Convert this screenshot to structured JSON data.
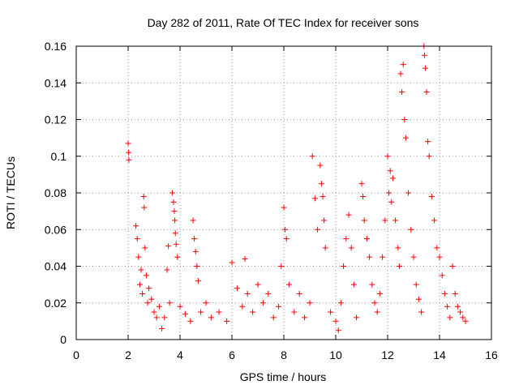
{
  "chart_data": {
    "type": "scatter",
    "title": "Day 282 of 2011, Rate Of TEC Index for receiver sons",
    "xlabel": "GPS time / hours",
    "ylabel": "ROTI / TECUs",
    "xlim": [
      0,
      16
    ],
    "ylim": [
      0,
      0.16
    ],
    "grid": true,
    "marker": "+",
    "series": [
      {
        "name": "ROTI",
        "color": "#ff0000",
        "x": [
          2.0,
          2.02,
          2.03,
          2.3,
          2.35,
          2.4,
          2.45,
          2.5,
          2.55,
          2.6,
          2.62,
          2.65,
          2.7,
          2.75,
          2.8,
          2.9,
          3.0,
          3.1,
          3.2,
          3.3,
          3.4,
          3.5,
          3.55,
          3.6,
          3.7,
          3.75,
          3.78,
          3.8,
          3.82,
          3.85,
          3.9,
          4.0,
          4.2,
          4.4,
          4.5,
          4.55,
          4.6,
          4.65,
          4.7,
          4.8,
          5.0,
          5.2,
          5.5,
          5.8,
          6.0,
          6.2,
          6.4,
          6.5,
          6.6,
          6.8,
          7.0,
          7.2,
          7.4,
          7.6,
          7.8,
          7.9,
          8.0,
          8.05,
          8.1,
          8.2,
          8.4,
          8.6,
          8.8,
          9.0,
          9.1,
          9.2,
          9.3,
          9.4,
          9.45,
          9.5,
          9.55,
          9.6,
          9.8,
          10.0,
          10.1,
          10.2,
          10.3,
          10.4,
          10.5,
          10.6,
          10.7,
          10.8,
          11.0,
          11.05,
          11.1,
          11.2,
          11.3,
          11.4,
          11.5,
          11.6,
          11.7,
          11.8,
          11.9,
          12.0,
          12.05,
          12.1,
          12.15,
          12.2,
          12.3,
          12.4,
          12.45,
          12.5,
          12.55,
          12.6,
          12.65,
          12.7,
          12.8,
          12.9,
          13.0,
          13.1,
          13.2,
          13.3,
          13.4,
          13.42,
          13.45,
          13.5,
          13.55,
          13.6,
          13.7,
          13.8,
          13.9,
          14.0,
          14.1,
          14.2,
          14.3,
          14.4,
          14.5,
          14.6,
          14.7,
          14.8,
          14.9,
          15.0
        ],
        "y": [
          0.107,
          0.102,
          0.098,
          0.062,
          0.055,
          0.045,
          0.03,
          0.038,
          0.025,
          0.078,
          0.072,
          0.05,
          0.035,
          0.02,
          0.028,
          0.022,
          0.015,
          0.012,
          0.018,
          0.006,
          0.012,
          0.038,
          0.051,
          0.02,
          0.08,
          0.075,
          0.07,
          0.065,
          0.058,
          0.052,
          0.045,
          0.018,
          0.014,
          0.01,
          0.065,
          0.055,
          0.048,
          0.04,
          0.032,
          0.015,
          0.02,
          0.012,
          0.015,
          0.01,
          0.042,
          0.028,
          0.018,
          0.044,
          0.025,
          0.015,
          0.03,
          0.02,
          0.025,
          0.012,
          0.018,
          0.04,
          0.072,
          0.06,
          0.055,
          0.03,
          0.015,
          0.025,
          0.012,
          0.02,
          0.1,
          0.077,
          0.06,
          0.095,
          0.085,
          0.078,
          0.065,
          0.05,
          0.015,
          0.01,
          0.005,
          0.02,
          0.04,
          0.055,
          0.068,
          0.05,
          0.03,
          0.012,
          0.085,
          0.078,
          0.065,
          0.055,
          0.045,
          0.03,
          0.02,
          0.015,
          0.025,
          0.045,
          0.065,
          0.1,
          0.08,
          0.092,
          0.075,
          0.088,
          0.065,
          0.05,
          0.04,
          0.145,
          0.135,
          0.15,
          0.12,
          0.11,
          0.08,
          0.06,
          0.045,
          0.03,
          0.022,
          0.015,
          0.16,
          0.155,
          0.148,
          0.135,
          0.108,
          0.1,
          0.078,
          0.065,
          0.05,
          0.045,
          0.035,
          0.025,
          0.018,
          0.012,
          0.04,
          0.025,
          0.018,
          0.015,
          0.012,
          0.01
        ]
      }
    ]
  },
  "x_ticks": [
    "0",
    "2",
    "4",
    "6",
    "8",
    "10",
    "12",
    "14",
    "16"
  ],
  "y_ticks": [
    "0",
    "0.02",
    "0.04",
    "0.06",
    "0.08",
    "0.1",
    "0.12",
    "0.14",
    "0.16"
  ]
}
